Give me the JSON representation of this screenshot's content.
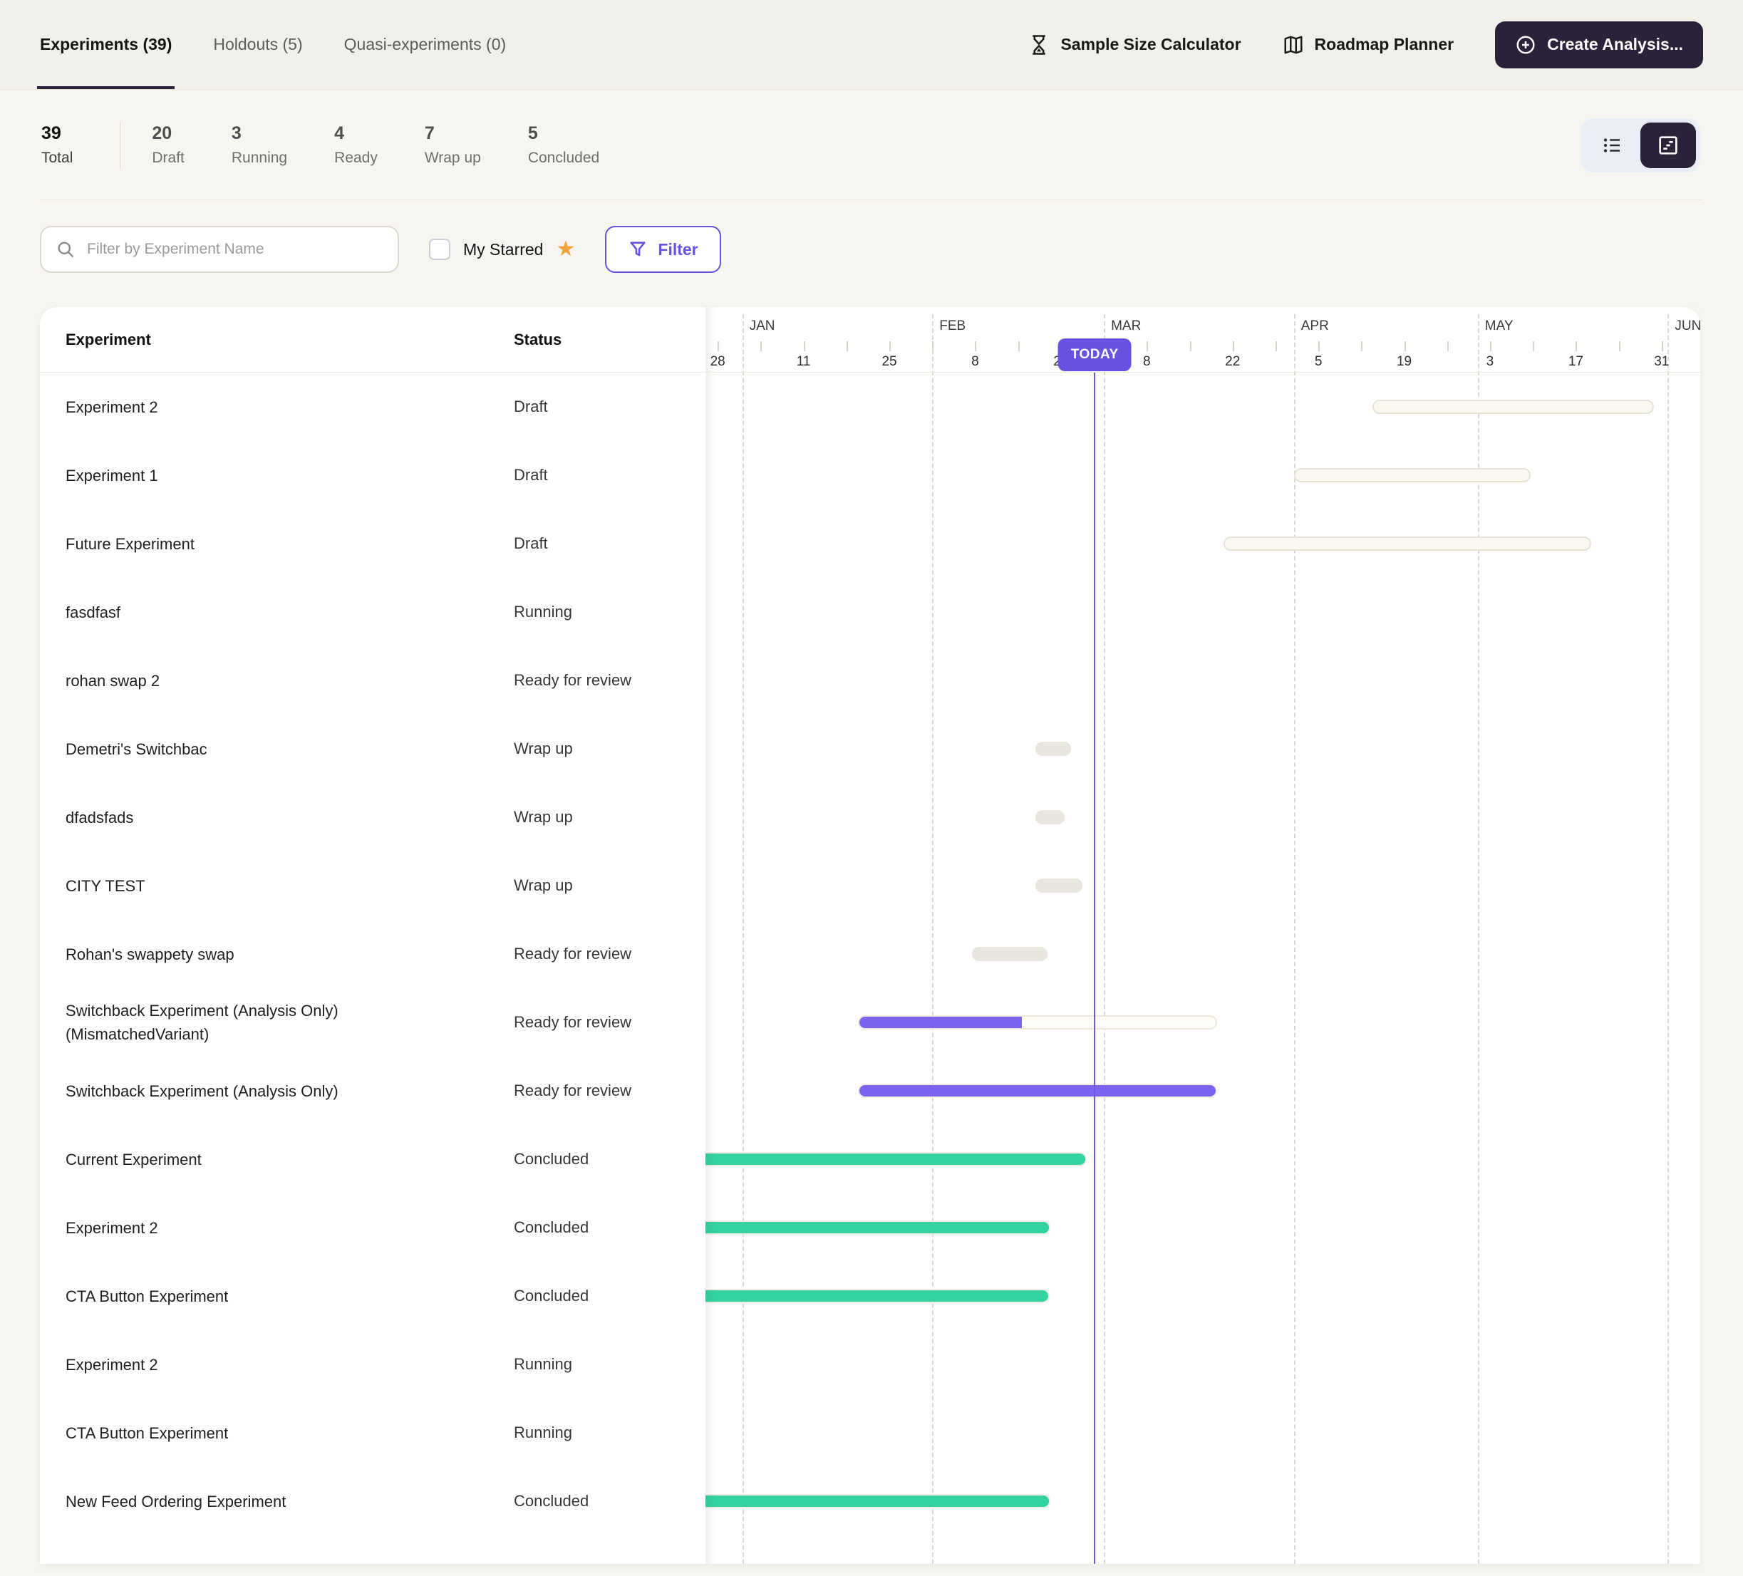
{
  "topbar": {
    "tabs": [
      {
        "label": "Experiments (39)",
        "active": true
      },
      {
        "label": "Holdouts (5)",
        "active": false
      },
      {
        "label": "Quasi-experiments (0)",
        "active": false
      }
    ],
    "actions": [
      {
        "label": "Sample Size Calculator",
        "icon": "hourglass-icon"
      },
      {
        "label": "Roadmap Planner",
        "icon": "map-icon"
      }
    ],
    "create_label": "Create Analysis..."
  },
  "stats": {
    "total": {
      "value": "39",
      "label": "Total"
    },
    "items": [
      {
        "value": "20",
        "label": "Draft"
      },
      {
        "value": "3",
        "label": "Running"
      },
      {
        "value": "4",
        "label": "Ready"
      },
      {
        "value": "7",
        "label": "Wrap up"
      },
      {
        "value": "5",
        "label": "Concluded"
      }
    ]
  },
  "view_toggle": {
    "options": [
      "list",
      "timeline"
    ],
    "active": "timeline"
  },
  "filters": {
    "search_placeholder": "Filter by Experiment Name",
    "search_value": "",
    "starred_label": "My Starred",
    "filter_label": "Filter"
  },
  "table": {
    "columns": [
      "Experiment",
      "Status"
    ],
    "rows": [
      {
        "name": "Experiment 2",
        "status": "Draft",
        "bar": {
          "style": "draft",
          "start": 108.8,
          "end": 154.7
        }
      },
      {
        "name": "Experiment 1",
        "status": "Draft",
        "bar": {
          "style": "draft",
          "start": 96.0,
          "end": 134.6
        }
      },
      {
        "name": "Future Experiment",
        "status": "Draft",
        "bar": {
          "style": "draft",
          "start": 84.5,
          "end": 144.5
        }
      },
      {
        "name": "fasdfasf",
        "status": "Running",
        "bar": null
      },
      {
        "name": "rohan swap 2",
        "status": "Ready for review",
        "bar": null
      },
      {
        "name": "Demetri's Switchbac",
        "status": "Wrap up",
        "bar": {
          "style": "gray",
          "start": 53.8,
          "end": 59.7
        }
      },
      {
        "name": "dfadsfads",
        "status": "Wrap up",
        "bar": {
          "style": "gray",
          "start": 53.8,
          "end": 58.6
        }
      },
      {
        "name": "CITY TEST",
        "status": "Wrap up",
        "bar": {
          "style": "gray",
          "start": 53.8,
          "end": 61.5
        }
      },
      {
        "name": "Rohan's swappety swap",
        "status": "Ready for review",
        "bar": {
          "style": "gray",
          "start": 43.5,
          "end": 55.8
        }
      },
      {
        "name": "Switchback Experiment (Analysis Only) (MismatchedVariant)",
        "status": "Ready for review",
        "bar": {
          "style": "progress",
          "start": 24.9,
          "end": 83.5,
          "fill_end": 51.6
        }
      },
      {
        "name": "Switchback Experiment (Analysis Only)",
        "status": "Ready for review",
        "bar": {
          "style": "purple",
          "start": 24.9,
          "end": 83.5
        }
      },
      {
        "name": "Current Experiment",
        "status": "Concluded",
        "bar": {
          "style": "green",
          "start": 0,
          "end": 62.2,
          "clip_left": true
        }
      },
      {
        "name": "Experiment 2",
        "status": "Concluded",
        "bar": {
          "style": "green",
          "start": 0,
          "end": 56.3,
          "clip_left": true
        }
      },
      {
        "name": "CTA Button Experiment",
        "status": "Concluded",
        "bar": {
          "style": "green",
          "start": 0,
          "end": 56.2,
          "clip_left": true
        }
      },
      {
        "name": "Experiment 2",
        "status": "Running",
        "bar": null
      },
      {
        "name": "CTA Button Experiment",
        "status": "Running",
        "bar": null
      },
      {
        "name": "New Feed Ordering Experiment",
        "status": "Concluded",
        "bar": {
          "style": "green",
          "start": 0,
          "end": 56.3,
          "clip_left": true
        }
      }
    ]
  },
  "timeline": {
    "days_total": 162.3,
    "today_day": 63.5,
    "today_label": "TODAY",
    "months": [
      {
        "label": "JAN",
        "day": 6
      },
      {
        "label": "FEB",
        "day": 37
      },
      {
        "label": "MAR",
        "day": 65
      },
      {
        "label": "APR",
        "day": 96
      },
      {
        "label": "MAY",
        "day": 126
      },
      {
        "label": "JUN",
        "day": 157
      }
    ],
    "ticks": [
      {
        "day": 2,
        "label": "28"
      },
      {
        "day": 9
      },
      {
        "day": 16,
        "label": "11"
      },
      {
        "day": 23
      },
      {
        "day": 30,
        "label": "25"
      },
      {
        "day": 37
      },
      {
        "day": 44,
        "label": "8"
      },
      {
        "day": 51
      },
      {
        "day": 58,
        "label": "22"
      },
      {
        "day": 65
      },
      {
        "day": 72,
        "label": "8"
      },
      {
        "day": 79
      },
      {
        "day": 86,
        "label": "22"
      },
      {
        "day": 93
      },
      {
        "day": 100,
        "label": "5"
      },
      {
        "day": 107
      },
      {
        "day": 114,
        "label": "19"
      },
      {
        "day": 121
      },
      {
        "day": 128,
        "label": "3"
      },
      {
        "day": 135
      },
      {
        "day": 142,
        "label": "17"
      },
      {
        "day": 149
      },
      {
        "day": 156,
        "label": "31"
      }
    ]
  },
  "colors": {
    "accent_purple": "#6a52e0",
    "bar_purple": "#7d64ef",
    "bar_green": "#32d3a0",
    "bar_gray": "#e9e6df",
    "draft_fill": "#faf8f1",
    "draft_border": "#e7e3d7",
    "dark_button": "#2b2139",
    "star_gold": "#f2a33c",
    "today_line": "#7157e6"
  }
}
